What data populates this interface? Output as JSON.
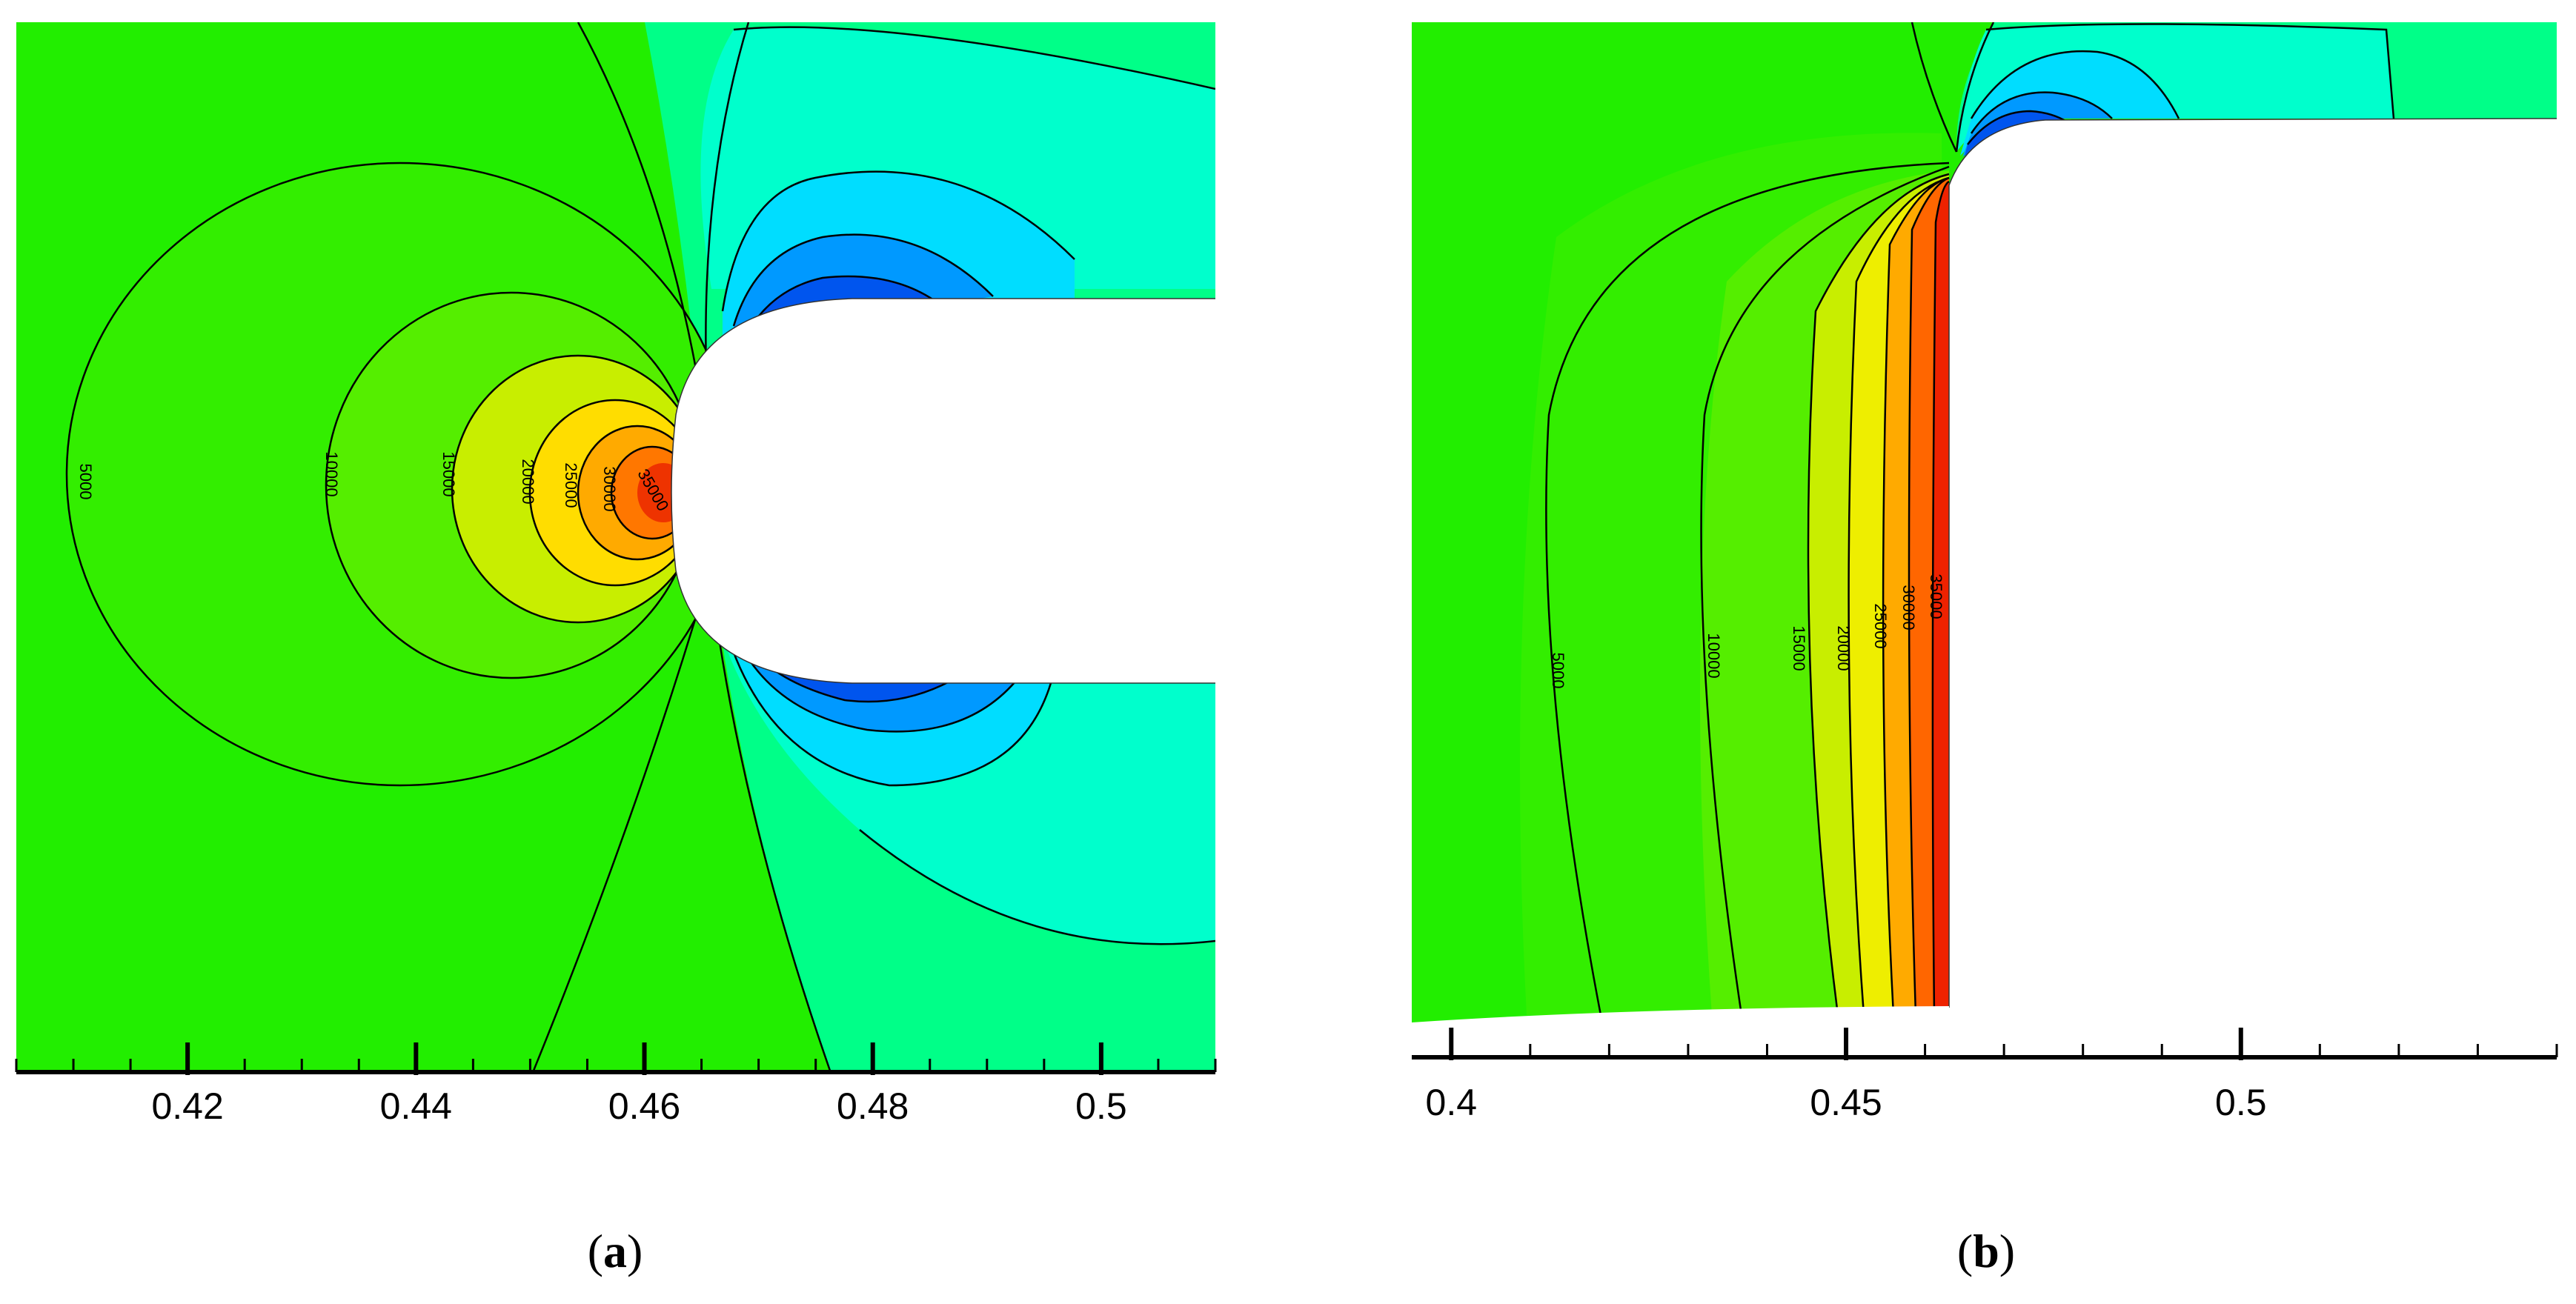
{
  "chart_data": [
    {
      "type": "contour",
      "caption_letter": "a",
      "xlim": [
        0.405,
        0.51
      ],
      "x_ticks": [
        0.42,
        0.44,
        0.46,
        0.48,
        0.5
      ],
      "x_tick_labels": [
        "0.42",
        "0.44",
        "0.46",
        "0.48",
        "0.5"
      ],
      "contour_levels": [
        5000,
        10000,
        15000,
        20000,
        25000,
        30000,
        35000
      ],
      "contour_labels": [
        "5000",
        "10000",
        "15000",
        "20000",
        "25000",
        "30000",
        "35000"
      ],
      "body_shape": "rounded leading edge",
      "stagnation_x": 0.461
    },
    {
      "type": "contour",
      "caption_letter": "b",
      "xlim": [
        0.395,
        0.54
      ],
      "x_ticks": [
        0.4,
        0.45,
        0.5
      ],
      "x_tick_labels": [
        "0.4",
        "0.45",
        "0.5"
      ],
      "contour_levels": [
        5000,
        10000,
        15000,
        20000,
        25000,
        30000,
        35000
      ],
      "contour_labels": [
        "5000",
        "10000",
        "15000",
        "20000",
        "25000",
        "30000",
        "35000"
      ],
      "body_shape": "blunt step",
      "stagnation_x": 0.462
    }
  ],
  "colors": {
    "level_0": "#22ee00",
    "level_5000": "#00ee22",
    "level_10000": "#44ee00",
    "level_15000": "#aaee00",
    "level_20000": "#eeee00",
    "level_25000": "#ffaa00",
    "level_30000": "#ff6600",
    "level_35000": "#ee2200",
    "neg_1": "#00ff88",
    "neg_2": "#00ffcc",
    "neg_3": "#00ddff",
    "neg_4": "#0099ff",
    "neg_5": "#0055ee",
    "neg_6": "#0022bb",
    "body": "#ffffff",
    "contour_line": "#000000"
  }
}
